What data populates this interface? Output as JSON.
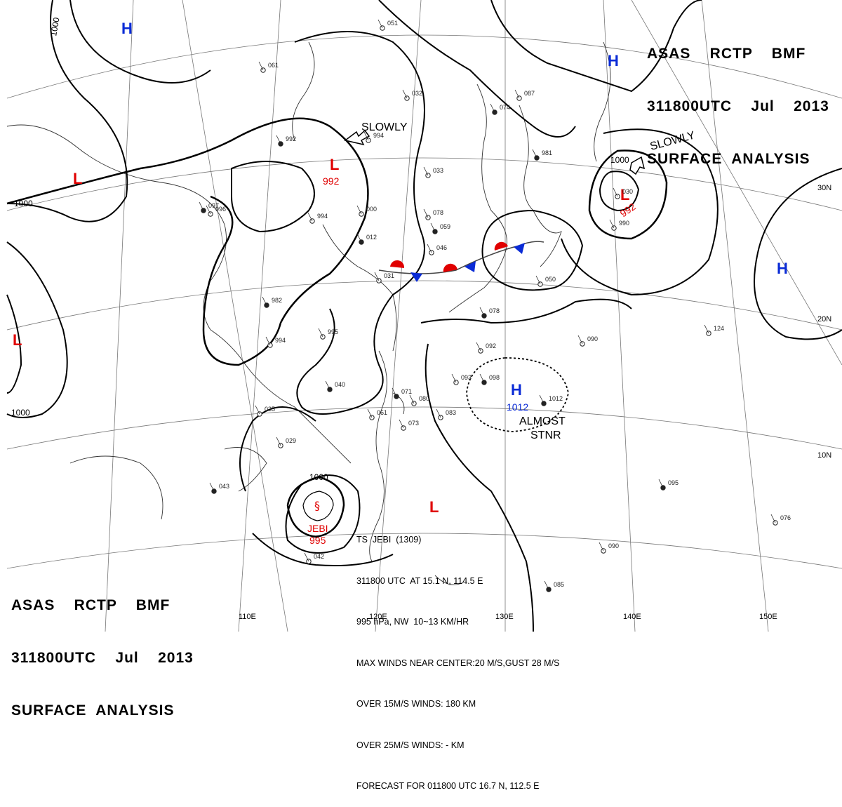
{
  "header": {
    "line1": "ASAS    RCTP    BMF",
    "line2": "311800UTC    Jul    2013",
    "line3": "SURFACE  ANALYSIS"
  },
  "longitude_labels": [
    "110E",
    "120E",
    "130E",
    "140E",
    "150E"
  ],
  "latitude_labels": [
    "30N",
    "20N",
    "10N"
  ],
  "isobar_labels": [
    "1000",
    "1000",
    "1000",
    "1000",
    "1000"
  ],
  "systems": {
    "high": [
      {
        "symbol": "H",
        "pressure": ""
      },
      {
        "symbol": "H",
        "pressure": ""
      },
      {
        "symbol": "H",
        "pressure": ""
      },
      {
        "symbol": "H",
        "pressure": "1012"
      }
    ],
    "low": [
      {
        "symbol": "L",
        "pressure": "992"
      },
      {
        "symbol": "L",
        "pressure": "992"
      },
      {
        "symbol": "L",
        "pressure": ""
      },
      {
        "symbol": "L",
        "pressure": ""
      },
      {
        "symbol": "L",
        "pressure": ""
      }
    ]
  },
  "motion_labels": {
    "slowly_1": "SLOWLY",
    "slowly_2": "SLOWLY",
    "almost": "ALMOST",
    "stnr": "STNR"
  },
  "typhoon": {
    "name": "JEBI",
    "pressure": "995"
  },
  "ts_info": {
    "line1": "TS  JEBI  (1309)",
    "line2": "311800 UTC  AT 15.1 N, 114.5 E",
    "line3": "995 hPa, NW  10~13 KM/HR",
    "line4": "MAX WINDS NEAR CENTER:20 M/S,GUST 28 M/S",
    "line5": "OVER 15M/S WINDS: 180 KM",
    "line6": "OVER 25M/S WINDS: - KM",
    "line7": "FORECAST FOR 011800 UTC 16.7 N, 112.5 E"
  },
  "colors": {
    "high": "#0a2bd6",
    "low": "#e00000",
    "cold_front": "#0a2bd6",
    "warm_front": "#e00000"
  },
  "station_values": [
    "992",
    "994",
    "994",
    "982",
    "994",
    "995",
    "1012",
    "996",
    "990",
    "981",
    "033",
    "032",
    "059",
    "046",
    "000",
    "012",
    "031",
    "050",
    "078",
    "092",
    "093",
    "098",
    "080",
    "083",
    "071",
    "061",
    "073",
    "040",
    "035",
    "029",
    "043",
    "042",
    "090",
    "095",
    "076",
    "124",
    "085",
    "051",
    "061",
    "074",
    "087",
    "078",
    "097",
    "030",
    "090"
  ]
}
